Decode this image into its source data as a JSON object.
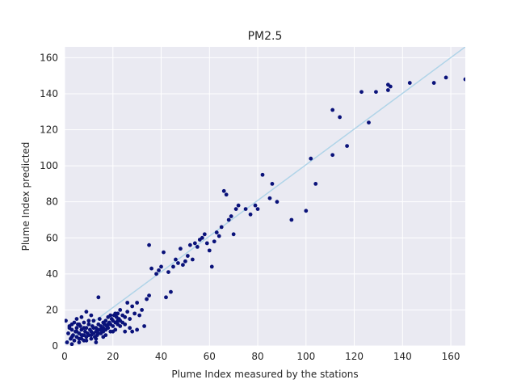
{
  "chart_data": {
    "type": "scatter",
    "title": "PM2.5",
    "xlabel": "Plume Index measured by the stations",
    "ylabel": "Plume Index predicted",
    "xlim": [
      0,
      166
    ],
    "ylim": [
      0,
      166
    ],
    "xticks": [
      0,
      20,
      40,
      60,
      80,
      100,
      120,
      140,
      160
    ],
    "yticks": [
      0,
      20,
      40,
      60,
      80,
      100,
      120,
      140,
      160
    ],
    "grid": true,
    "colors": {
      "background": "#eaeaf2",
      "grid": "#ffffff",
      "points": "#0a127a",
      "fit_line": "#b0d4e8"
    },
    "fit_line": {
      "x": [
        0,
        166
      ],
      "y": [
        1.5,
        166
      ]
    },
    "series": [
      {
        "points": [
          [
            0.5,
            14
          ],
          [
            1,
            2
          ],
          [
            1.5,
            7
          ],
          [
            2,
            11
          ],
          [
            2.5,
            4
          ],
          [
            3,
            12
          ],
          [
            3,
            9
          ],
          [
            3.5,
            6
          ],
          [
            4,
            13
          ],
          [
            4,
            3
          ],
          [
            4.5,
            8
          ],
          [
            5,
            10
          ],
          [
            5,
            5
          ],
          [
            5.5,
            12
          ],
          [
            6,
            2
          ],
          [
            6,
            7
          ],
          [
            6.5,
            11
          ],
          [
            7,
            4
          ],
          [
            7,
            9
          ],
          [
            7.5,
            6
          ],
          [
            8,
            13
          ],
          [
            8,
            3
          ],
          [
            8.5,
            8
          ],
          [
            9,
            10
          ],
          [
            9,
            5
          ],
          [
            9.5,
            7
          ],
          [
            10,
            12
          ],
          [
            10,
            6
          ],
          [
            10.5,
            9
          ],
          [
            11,
            4
          ],
          [
            11,
            8
          ],
          [
            11.5,
            11
          ],
          [
            12,
            7
          ],
          [
            12,
            14
          ],
          [
            12.5,
            5
          ],
          [
            13,
            10
          ],
          [
            13,
            8
          ],
          [
            13.5,
            6
          ],
          [
            14,
            12
          ],
          [
            14,
            9
          ],
          [
            14.5,
            15
          ],
          [
            15,
            7
          ],
          [
            15,
            11
          ],
          [
            15.5,
            10
          ],
          [
            16,
            13
          ],
          [
            16,
            8
          ],
          [
            16.5,
            12
          ],
          [
            17,
            9
          ],
          [
            17,
            14
          ],
          [
            17.5,
            11
          ],
          [
            18,
            10
          ],
          [
            18,
            16
          ],
          [
            18.5,
            13
          ],
          [
            19,
            12
          ],
          [
            19,
            8
          ],
          [
            19.5,
            15
          ],
          [
            20,
            11
          ],
          [
            20,
            14
          ],
          [
            20.5,
            17
          ],
          [
            21,
            13
          ],
          [
            21,
            9
          ],
          [
            21.5,
            16
          ],
          [
            22,
            12
          ],
          [
            22,
            18
          ],
          [
            22.5,
            15
          ],
          [
            23,
            14
          ],
          [
            23,
            11
          ],
          [
            24,
            17
          ],
          [
            24,
            13
          ],
          [
            25,
            16
          ],
          [
            26,
            19
          ],
          [
            27,
            15
          ],
          [
            28,
            22
          ],
          [
            29,
            18
          ],
          [
            30,
            24
          ],
          [
            32,
            20
          ],
          [
            34,
            26
          ],
          [
            2,
            10
          ],
          [
            3,
            5
          ],
          [
            5,
            8
          ],
          [
            6,
            12
          ],
          [
            7,
            6
          ],
          [
            8,
            10
          ],
          [
            9,
            3
          ],
          [
            10,
            14
          ],
          [
            11,
            6
          ],
          [
            12,
            10
          ],
          [
            13,
            4
          ],
          [
            14,
            7
          ],
          [
            15,
            9
          ],
          [
            16,
            10
          ],
          [
            17,
            6
          ],
          [
            18,
            12
          ],
          [
            19,
            17
          ],
          [
            20,
            8
          ],
          [
            21,
            18
          ],
          [
            22,
            14
          ],
          [
            23,
            20
          ],
          [
            25,
            12
          ],
          [
            27,
            10
          ],
          [
            14,
            27
          ],
          [
            9,
            19
          ],
          [
            7,
            16
          ],
          [
            11,
            17
          ],
          [
            5,
            15
          ],
          [
            26,
            24
          ],
          [
            28,
            8
          ],
          [
            30,
            9
          ],
          [
            33,
            11
          ],
          [
            25,
            8
          ],
          [
            3,
            1
          ],
          [
            6,
            4
          ],
          [
            8,
            6
          ],
          [
            13,
            2
          ],
          [
            16,
            5
          ],
          [
            31,
            17
          ],
          [
            35,
            28
          ],
          [
            35,
            56
          ],
          [
            36,
            43
          ],
          [
            38,
            40
          ],
          [
            39,
            42
          ],
          [
            40,
            44
          ],
          [
            41,
            52
          ],
          [
            42,
            27
          ],
          [
            43,
            41
          ],
          [
            44,
            30
          ],
          [
            45,
            44
          ],
          [
            46,
            48
          ],
          [
            47,
            46
          ],
          [
            48,
            54
          ],
          [
            49,
            45
          ],
          [
            50,
            47
          ],
          [
            51,
            50
          ],
          [
            52,
            56
          ],
          [
            53,
            48
          ],
          [
            54,
            57
          ],
          [
            55,
            55
          ],
          [
            56,
            59
          ],
          [
            57,
            60
          ],
          [
            58,
            62
          ],
          [
            59,
            57
          ],
          [
            60,
            53
          ],
          [
            61,
            44
          ],
          [
            62,
            58
          ],
          [
            63,
            63
          ],
          [
            64,
            61
          ],
          [
            65,
            66
          ],
          [
            66,
            86
          ],
          [
            67,
            84
          ],
          [
            68,
            70
          ],
          [
            69,
            72
          ],
          [
            70,
            62
          ],
          [
            71,
            76
          ],
          [
            72,
            78
          ],
          [
            75,
            76
          ],
          [
            77,
            73
          ],
          [
            79,
            78
          ],
          [
            80,
            76
          ],
          [
            82,
            95
          ],
          [
            85,
            82
          ],
          [
            86,
            90
          ],
          [
            88,
            80
          ],
          [
            94,
            70
          ],
          [
            100,
            75
          ],
          [
            102,
            104
          ],
          [
            104,
            90
          ],
          [
            111,
            131
          ],
          [
            111,
            106
          ],
          [
            114,
            127
          ],
          [
            117,
            111
          ],
          [
            123,
            141
          ],
          [
            126,
            124
          ],
          [
            129,
            141
          ],
          [
            134,
            142
          ],
          [
            134,
            145
          ],
          [
            135,
            144
          ],
          [
            143,
            146
          ],
          [
            153,
            146
          ],
          [
            158,
            149
          ],
          [
            166,
            148
          ]
        ]
      }
    ]
  }
}
